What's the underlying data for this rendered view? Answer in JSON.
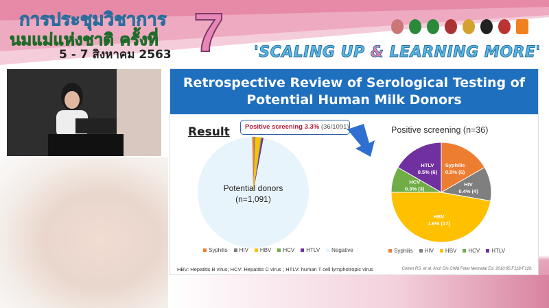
{
  "banner": {
    "thai_line1": "การประชุมวิชาการ",
    "thai_line2": "นมแม่แห่งชาติ ครั้งที่",
    "dates": "5 - 7 สิงหาคม 2563",
    "number": "7",
    "slogan_a": "'SCALING UP ",
    "slogan_amp": "&",
    "slogan_b": " LEARNING MORE'"
  },
  "slide": {
    "title": "Retrospective Review of Serological Testing of Potential Human Milk Donors",
    "section": "Result",
    "callout_bold": "Positive screening 3.3%",
    "callout_rest": " (36/1091)",
    "footnote": "HBV: Hepatitis B virus; HCV: Hepatitis C virus ; HTLV: human T cell lymphotropic virus",
    "citation": "Cohen RS, et al. Arch Dis Child Fetal Neonatal Ed. 2010;95:F118-F120."
  },
  "chart_data": [
    {
      "type": "pie",
      "center_label": "Potential donors",
      "center_sublabel": "(n=1,091)",
      "categories": [
        "Syphilis",
        "HIV",
        "HBV",
        "HCV",
        "HTLV",
        "Negative"
      ],
      "values": [
        6,
        4,
        17,
        3,
        6,
        1055
      ],
      "colors": [
        "#ed7d31",
        "#7f7f7f",
        "#ffc000",
        "#70ad47",
        "#7030a0",
        "#e8f4fc"
      ],
      "legend": "bottom"
    },
    {
      "type": "pie",
      "title": "Positive screening (n=36)",
      "categories": [
        "Syphilis",
        "HIV",
        "HBV",
        "HCV",
        "HTLV"
      ],
      "values": [
        6,
        4,
        17,
        3,
        6
      ],
      "labels": [
        "0.5% (6)",
        "0.4% (4)",
        "1.6% (17)",
        "0.3% (3)",
        "0.5% (6)"
      ],
      "colors": [
        "#ed7d31",
        "#7f7f7f",
        "#ffc000",
        "#70ad47",
        "#7030a0"
      ],
      "legend": "bottom"
    }
  ]
}
